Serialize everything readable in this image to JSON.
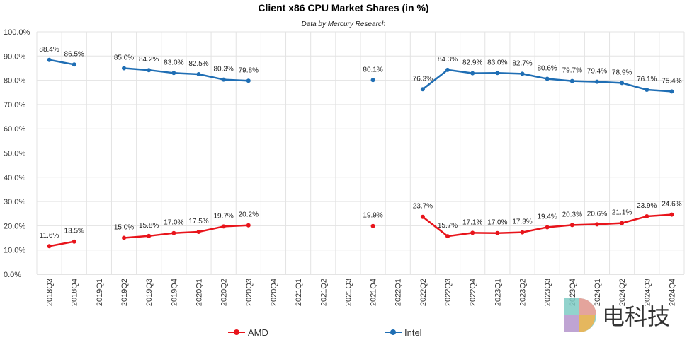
{
  "chart_data": {
    "type": "line",
    "title": "Client x86 CPU Market Shares (in %)",
    "subtitle": "Data by Mercury Research",
    "xlabel": "",
    "ylabel": "",
    "ylim": [
      0,
      100
    ],
    "yticks": [
      "0.0%",
      "10.0%",
      "20.0%",
      "30.0%",
      "40.0%",
      "50.0%",
      "60.0%",
      "70.0%",
      "80.0%",
      "90.0%",
      "100.0%"
    ],
    "grid": true,
    "legend_position": "bottom",
    "categories": [
      "2018Q3",
      "2018Q4",
      "2019Q1",
      "2019Q2",
      "2019Q3",
      "2019Q4",
      "2020Q1",
      "2020Q2",
      "2020Q3",
      "2020Q4",
      "2021Q1",
      "2021Q2",
      "2021Q3",
      "2021Q4",
      "2022Q1",
      "2022Q2",
      "2022Q3",
      "2022Q4",
      "2023Q1",
      "2023Q2",
      "2023Q3",
      "2023Q4",
      "2024Q1",
      "2024Q2",
      "2024Q3",
      "2024Q4"
    ],
    "series": [
      {
        "name": "AMD",
        "color": "#e8141b",
        "values": [
          11.6,
          13.5,
          null,
          15.0,
          15.8,
          17.0,
          17.5,
          19.7,
          20.2,
          null,
          null,
          null,
          null,
          19.9,
          null,
          23.7,
          15.7,
          17.1,
          17.0,
          17.3,
          19.4,
          20.3,
          20.6,
          21.1,
          23.9,
          24.6
        ],
        "labels": [
          "11.6%",
          "13.5%",
          null,
          "15.0%",
          "15.8%",
          "17.0%",
          "17.5%",
          "19.7%",
          "20.2%",
          null,
          null,
          null,
          null,
          "19.9%",
          null,
          "23.7%",
          "15.7%",
          "17.1%",
          "17.0%",
          "17.3%",
          "19.4%",
          "20.3%",
          "20.6%",
          "21.1%",
          "23.9%",
          "24.6%"
        ]
      },
      {
        "name": "Intel",
        "color": "#1f6eb4",
        "values": [
          88.4,
          86.5,
          null,
          85.0,
          84.2,
          83.0,
          82.5,
          80.3,
          79.8,
          null,
          null,
          null,
          null,
          80.1,
          null,
          76.3,
          84.3,
          82.9,
          83.0,
          82.7,
          80.6,
          79.7,
          79.4,
          78.9,
          76.1,
          75.4
        ],
        "labels": [
          "88.4%",
          "86.5%",
          null,
          "85.0%",
          "84.2%",
          "83.0%",
          "82.5%",
          "80.3%",
          "79.8%",
          null,
          null,
          null,
          null,
          "80.1%",
          null,
          "76.3%",
          "84.3%",
          "82.9%",
          "83.0%",
          "82.7%",
          "80.6%",
          "79.7%",
          "79.4%",
          "78.9%",
          "76.1%",
          "75.4%"
        ]
      }
    ]
  },
  "watermark": {
    "text": "电科技",
    "logo_icon": "dian-logo-icon"
  }
}
